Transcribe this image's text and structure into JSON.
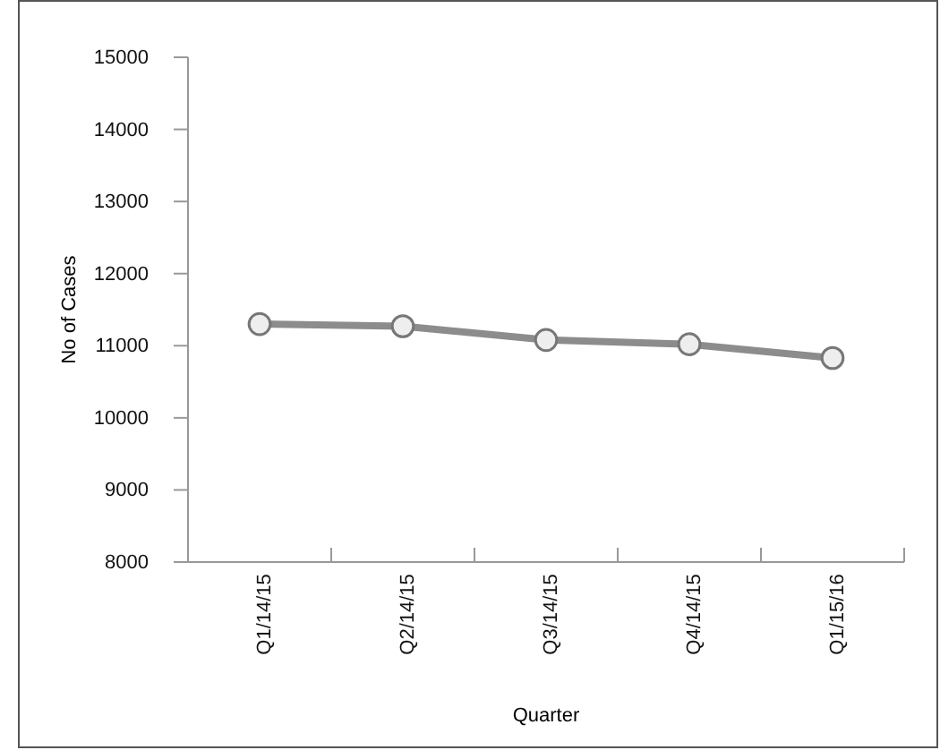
{
  "chart_data": {
    "type": "line",
    "xlabel": "Quarter",
    "ylabel": "No of Cases",
    "categories": [
      "Q1/14/15",
      "Q2/14/15",
      "Q3/14/15",
      "Q4/14/15",
      "Q1/15/16"
    ],
    "series": [
      {
        "color": "#8c8c8c",
        "values": [
          11300,
          11270,
          11080,
          11020,
          10830
        ]
      }
    ],
    "ylim": [
      8000,
      15000
    ],
    "yticks": [
      8000,
      9000,
      10000,
      11000,
      12000,
      13000,
      14000,
      15000
    ],
    "marker": "circle",
    "line_style": "solid"
  }
}
